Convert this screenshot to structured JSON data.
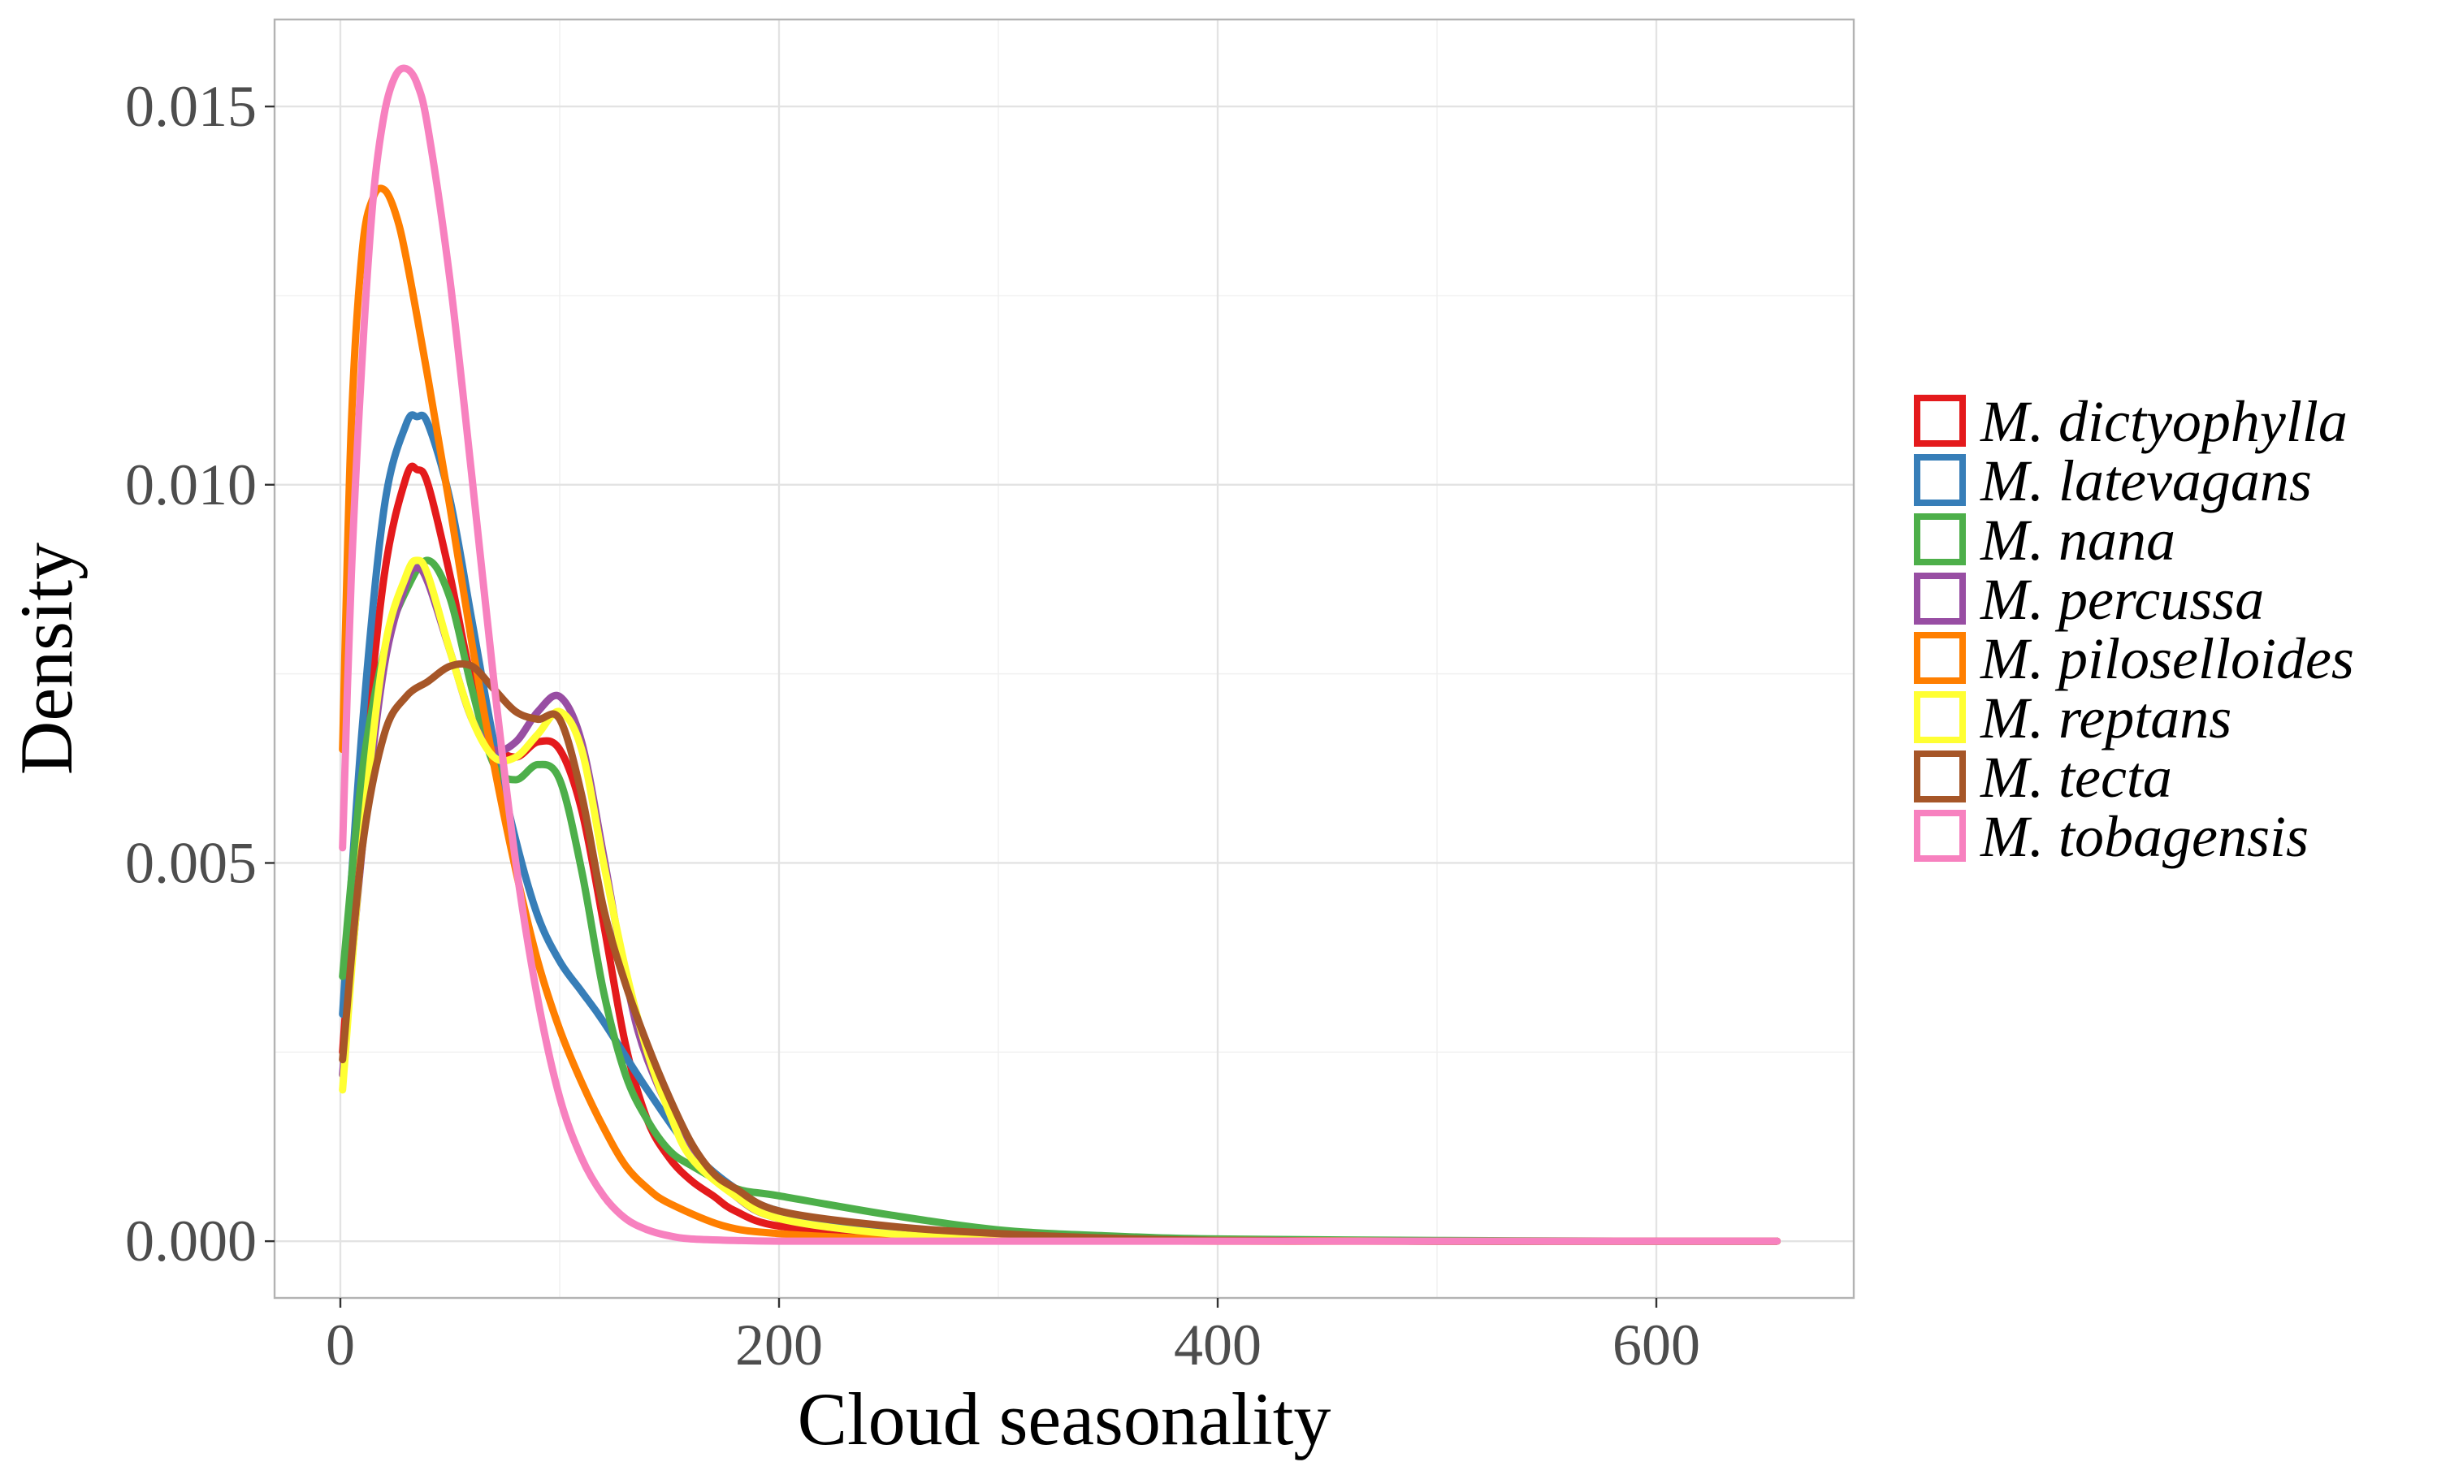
{
  "chart_data": {
    "type": "line",
    "xlabel": "Cloud seasonality",
    "ylabel": "Density",
    "xlim": [
      -30,
      690
    ],
    "ylim": [
      -0.00075,
      0.01615
    ],
    "xticks": [
      0,
      200,
      400,
      600
    ],
    "xtick_labels": [
      "0",
      "200",
      "400",
      "600"
    ],
    "yticks": [
      0.0,
      0.005,
      0.01,
      0.015
    ],
    "ytick_labels": [
      "0.000",
      "0.005",
      "0.010",
      "0.015"
    ],
    "grid": true,
    "legend_position": "right",
    "series": [
      {
        "name": "M. dictyophylla",
        "color": "#e41a1c",
        "x": [
          1,
          10,
          20,
          30,
          35,
          40,
          50,
          60,
          70,
          80,
          90,
          100,
          110,
          120,
          130,
          140,
          150,
          160,
          170,
          180,
          200,
          250,
          300,
          400,
          500,
          600,
          655
        ],
        "y": [
          0.0025,
          0.006,
          0.0088,
          0.0101,
          0.0102,
          0.01,
          0.0088,
          0.0074,
          0.0066,
          0.0064,
          0.0066,
          0.0065,
          0.0057,
          0.0042,
          0.0026,
          0.0016,
          0.0011,
          0.0008,
          0.0006,
          0.0004,
          0.0002,
          0.0001,
          4e-05,
          1e-05,
          0.0,
          0.0,
          0.0
        ]
      },
      {
        "name": "M. latevagans",
        "color": "#377eb8",
        "x": [
          1,
          10,
          20,
          30,
          35,
          40,
          50,
          60,
          70,
          80,
          90,
          100,
          110,
          120,
          140,
          160,
          180,
          200,
          250,
          300,
          400,
          500,
          600,
          655
        ],
        "y": [
          0.003,
          0.0068,
          0.0097,
          0.0108,
          0.0109,
          0.0108,
          0.0098,
          0.0082,
          0.0066,
          0.0053,
          0.0043,
          0.0037,
          0.0033,
          0.0029,
          0.002,
          0.0012,
          0.0007,
          0.0004,
          0.00015,
          6e-05,
          1e-05,
          0.0,
          0.0,
          0.0
        ]
      },
      {
        "name": "M. nana",
        "color": "#4daf4a",
        "x": [
          1,
          10,
          20,
          30,
          40,
          50,
          60,
          70,
          80,
          90,
          100,
          110,
          120,
          130,
          140,
          150,
          160,
          180,
          200,
          250,
          300,
          350,
          400,
          500,
          600,
          655
        ],
        "y": [
          0.0035,
          0.0062,
          0.0078,
          0.0086,
          0.009,
          0.0085,
          0.0073,
          0.0063,
          0.0061,
          0.0063,
          0.0061,
          0.0049,
          0.0033,
          0.0022,
          0.0016,
          0.0012,
          0.001,
          0.0007,
          0.0006,
          0.00035,
          0.00015,
          7e-05,
          3e-05,
          1e-05,
          0.0,
          0.0
        ]
      },
      {
        "name": "M. percussa",
        "color": "#984ea3",
        "x": [
          1,
          10,
          20,
          30,
          35,
          40,
          50,
          60,
          70,
          80,
          90,
          100,
          110,
          120,
          130,
          140,
          160,
          180,
          200,
          250,
          300,
          400,
          500,
          600,
          655
        ],
        "y": [
          0.0022,
          0.0052,
          0.0076,
          0.0087,
          0.0089,
          0.0087,
          0.0078,
          0.0069,
          0.0065,
          0.0066,
          0.007,
          0.0072,
          0.0066,
          0.0051,
          0.0035,
          0.0024,
          0.0012,
          0.0006,
          0.0003,
          0.0001,
          4e-05,
          1e-05,
          0.0,
          0.0,
          0.0
        ]
      },
      {
        "name": "M. piloselloides",
        "color": "#ff7f00",
        "x": [
          1,
          5,
          10,
          15,
          20,
          25,
          30,
          40,
          50,
          60,
          70,
          80,
          90,
          100,
          110,
          120,
          130,
          140,
          150,
          175,
          200,
          250,
          300,
          400,
          500,
          600,
          655
        ],
        "y": [
          0.0065,
          0.0108,
          0.0131,
          0.0138,
          0.0139,
          0.0136,
          0.013,
          0.0114,
          0.0097,
          0.0079,
          0.0063,
          0.0049,
          0.0037,
          0.0028,
          0.0021,
          0.0015,
          0.001,
          0.0007,
          0.0005,
          0.0002,
          0.0001,
          3e-05,
          1e-05,
          0.0,
          0.0,
          0.0,
          0.0
        ]
      },
      {
        "name": "M. reptans",
        "color": "#ffff33",
        "x": [
          1,
          10,
          20,
          30,
          35,
          40,
          50,
          60,
          70,
          80,
          90,
          100,
          110,
          120,
          130,
          140,
          150,
          160,
          180,
          200,
          250,
          300,
          400,
          500,
          600,
          655
        ],
        "y": [
          0.002,
          0.0053,
          0.0078,
          0.0088,
          0.009,
          0.0088,
          0.0078,
          0.0069,
          0.0064,
          0.0064,
          0.0067,
          0.007,
          0.0065,
          0.005,
          0.0036,
          0.0025,
          0.0017,
          0.0011,
          0.0006,
          0.0003,
          0.0001,
          4e-05,
          1e-05,
          0.0,
          0.0,
          0.0
        ]
      },
      {
        "name": "M. tecta",
        "color": "#a65628",
        "x": [
          1,
          10,
          20,
          30,
          40,
          50,
          60,
          70,
          80,
          90,
          100,
          110,
          120,
          130,
          140,
          150,
          160,
          170,
          180,
          200,
          250,
          300,
          350,
          400,
          500,
          600,
          655
        ],
        "y": [
          0.0024,
          0.0052,
          0.0067,
          0.0072,
          0.0074,
          0.0076,
          0.0076,
          0.0073,
          0.007,
          0.0069,
          0.0069,
          0.0059,
          0.0044,
          0.0034,
          0.0026,
          0.0019,
          0.0013,
          0.0009,
          0.0007,
          0.0004,
          0.0002,
          0.0001,
          4e-05,
          1e-05,
          0.0,
          0.0,
          0.0
        ]
      },
      {
        "name": "M. tobagensis",
        "color": "#f781bf",
        "x": [
          1,
          5,
          10,
          15,
          20,
          25,
          30,
          35,
          40,
          50,
          60,
          70,
          80,
          90,
          100,
          110,
          120,
          130,
          140,
          150,
          160,
          180,
          200,
          250,
          300,
          400,
          500,
          600,
          655
        ],
        "y": [
          0.0052,
          0.0088,
          0.0117,
          0.0138,
          0.0149,
          0.0154,
          0.0155,
          0.0153,
          0.0147,
          0.0127,
          0.0101,
          0.0074,
          0.005,
          0.0032,
          0.0019,
          0.0011,
          0.0006,
          0.0003,
          0.00015,
          7e-05,
          3e-05,
          1e-05,
          0.0,
          0.0,
          0.0,
          0.0,
          0.0,
          0.0,
          0.0
        ]
      }
    ]
  }
}
